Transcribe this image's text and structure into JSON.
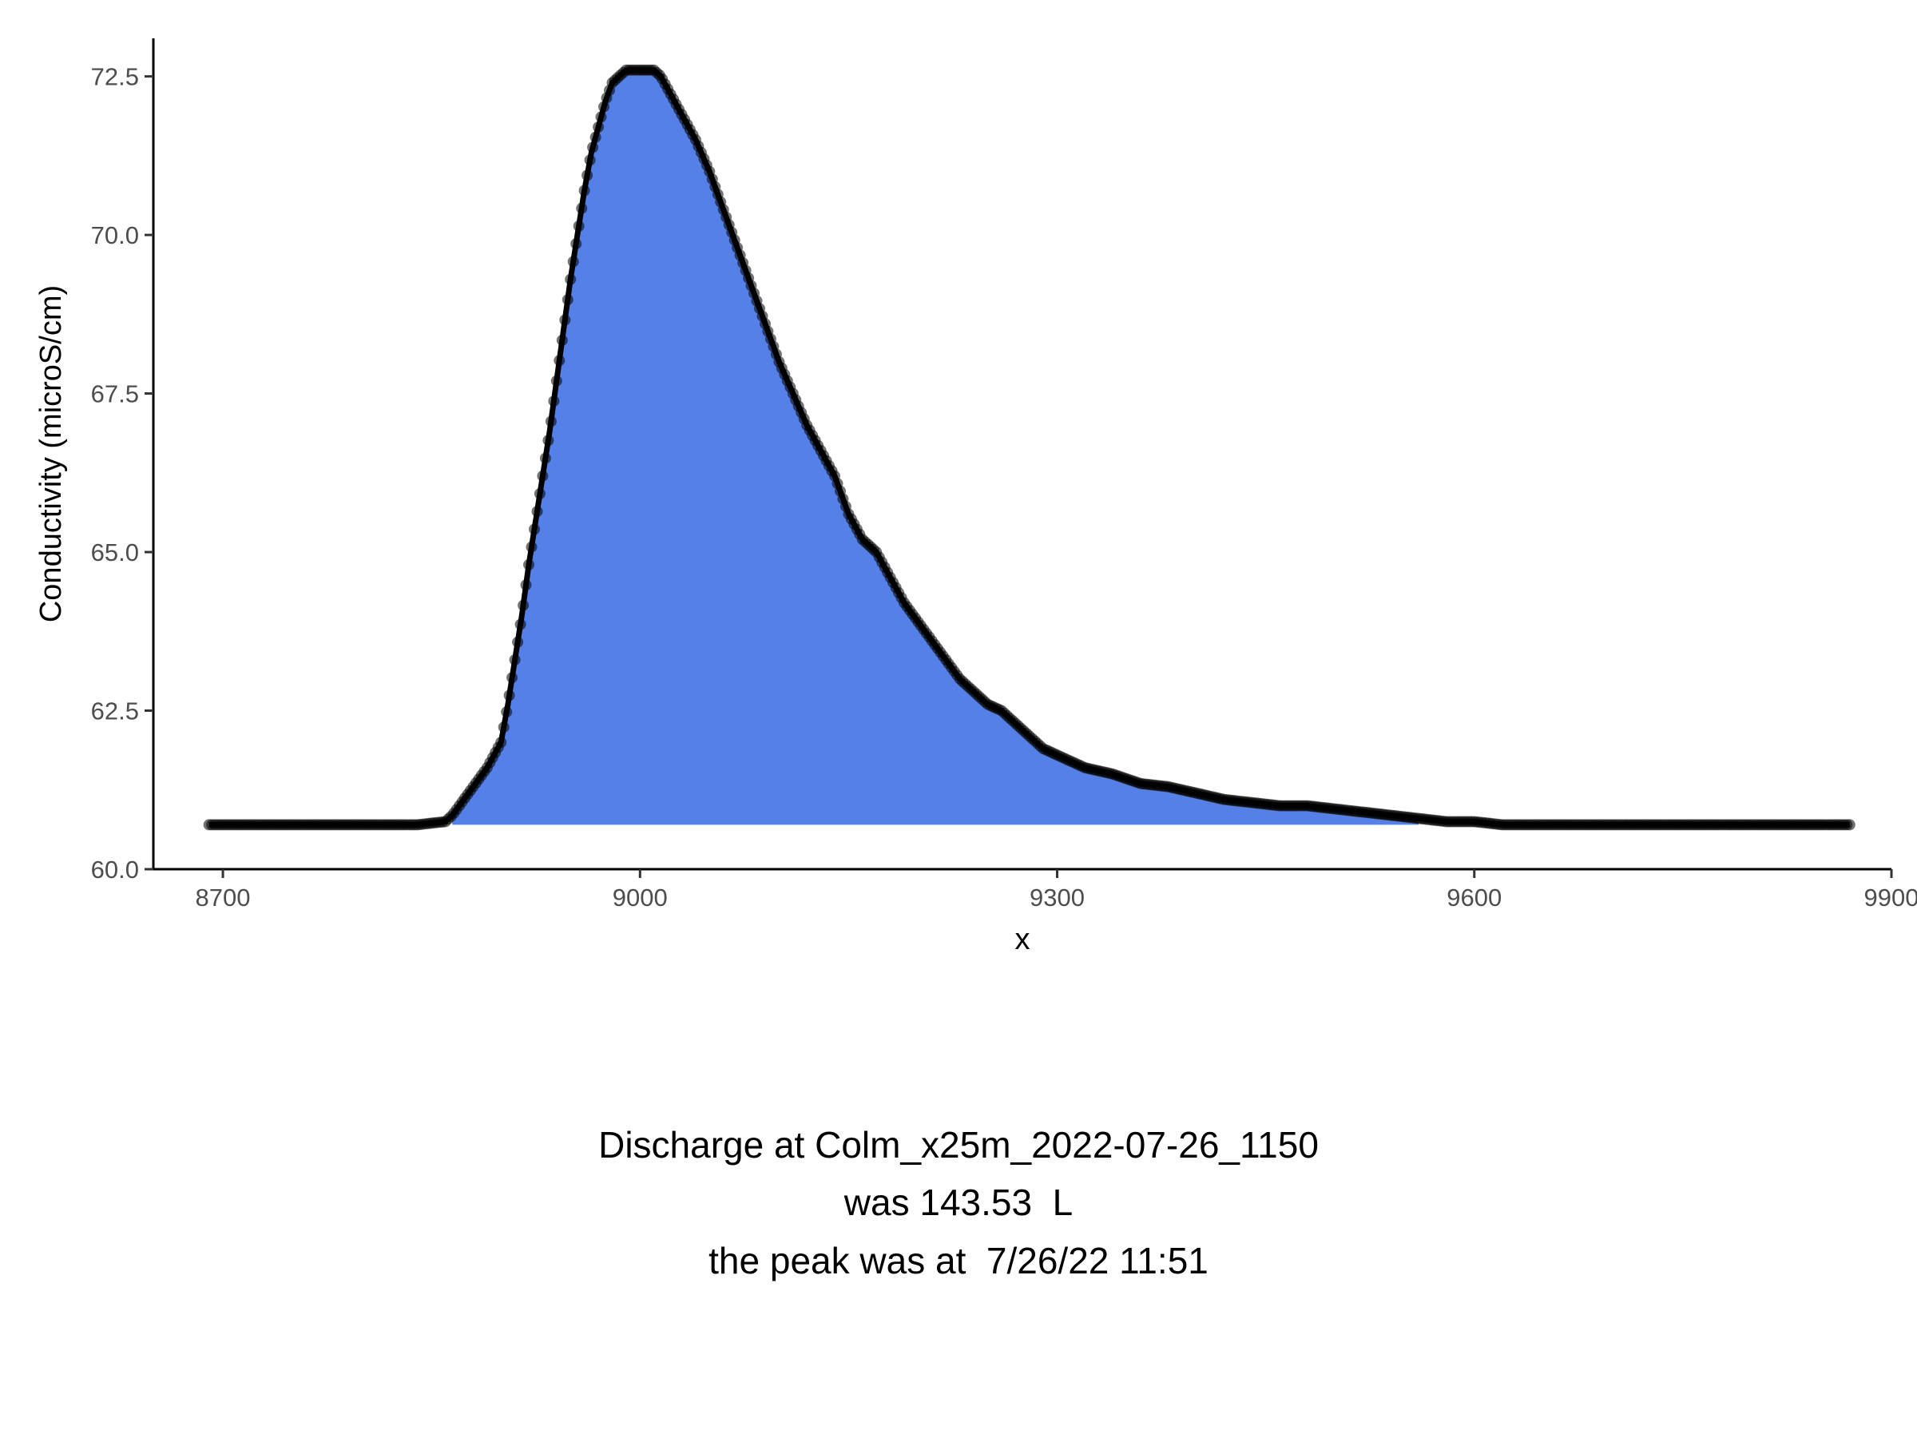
{
  "chart_data": {
    "type": "area",
    "xlabel": "x",
    "ylabel": "Conductivity (microS/cm)",
    "xlim": [
      8650,
      9900
    ],
    "ylim": [
      60.0,
      73.1
    ],
    "x_ticks": [
      8700,
      9000,
      9300,
      9600,
      9900
    ],
    "y_ticks": [
      60.0,
      62.5,
      65.0,
      67.5,
      70.0,
      72.5
    ],
    "x_tick_labels": [
      "8700",
      "9000",
      "9300",
      "9600",
      "9900"
    ],
    "y_tick_labels": [
      "60.0",
      "62.5",
      "65.0",
      "67.5",
      "70.0",
      "72.5"
    ],
    "grid": false,
    "baseline": 60.7,
    "shaded_range": [
      8865,
      9560
    ],
    "colors": {
      "fill": "#5480e8",
      "points": "#000000",
      "axis": "#000000"
    },
    "series": [
      {
        "x": [
          8690,
          8700,
          8720,
          8740,
          8760,
          8780,
          8800,
          8820,
          8840,
          8860,
          8865,
          8870,
          8880,
          8890,
          8900,
          8905,
          8910,
          8915,
          8920,
          8925,
          8930,
          8935,
          8940,
          8945,
          8950,
          8955,
          8960,
          8965,
          8970,
          8975,
          8980,
          8985,
          8990,
          9000,
          9010,
          9015,
          9020,
          9025,
          9030,
          9040,
          9050,
          9060,
          9070,
          9080,
          9090,
          9100,
          9110,
          9120,
          9130,
          9140,
          9150,
          9160,
          9170,
          9180,
          9190,
          9200,
          9210,
          9220,
          9230,
          9240,
          9250,
          9260,
          9270,
          9280,
          9290,
          9300,
          9320,
          9340,
          9360,
          9380,
          9400,
          9420,
          9440,
          9460,
          9480,
          9500,
          9520,
          9540,
          9560,
          9580,
          9600,
          9620,
          9640,
          9660,
          9680,
          9700,
          9720,
          9740,
          9760,
          9780,
          9800,
          9820,
          9840,
          9860,
          9870
        ],
        "y": [
          60.7,
          60.7,
          60.7,
          60.7,
          60.7,
          60.7,
          60.7,
          60.7,
          60.7,
          60.75,
          60.85,
          61.0,
          61.3,
          61.6,
          62.0,
          62.6,
          63.3,
          64.0,
          64.8,
          65.5,
          66.2,
          66.9,
          67.7,
          68.5,
          69.3,
          70.0,
          70.7,
          71.3,
          71.7,
          72.1,
          72.4,
          72.5,
          72.6,
          72.6,
          72.6,
          72.5,
          72.3,
          72.1,
          71.9,
          71.5,
          71.0,
          70.4,
          69.8,
          69.2,
          68.6,
          68.0,
          67.5,
          67.0,
          66.6,
          66.2,
          65.6,
          65.2,
          65.0,
          64.6,
          64.2,
          63.9,
          63.6,
          63.3,
          63.0,
          62.8,
          62.6,
          62.5,
          62.3,
          62.1,
          61.9,
          61.8,
          61.6,
          61.5,
          61.35,
          61.3,
          61.2,
          61.1,
          61.05,
          61.0,
          61.0,
          60.95,
          60.9,
          60.85,
          60.8,
          60.75,
          60.75,
          60.7,
          60.7,
          60.7,
          60.7,
          60.7,
          60.7,
          60.7,
          60.7,
          60.7,
          60.7,
          60.7,
          60.7,
          60.7,
          60.7
        ]
      }
    ]
  },
  "caption": {
    "line1": "Discharge at Colm_x25m_2022-07-26_1150",
    "line2": "was 143.53  L",
    "line3": "the peak was at  7/26/22 11:51"
  }
}
